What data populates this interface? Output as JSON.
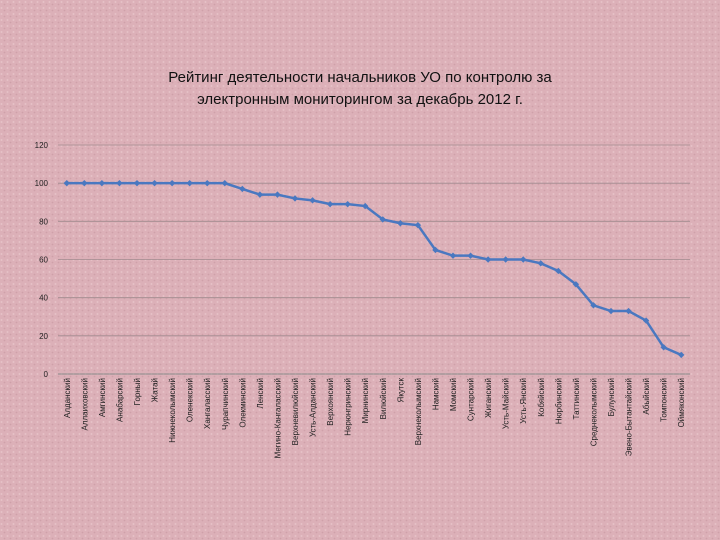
{
  "chart_data": {
    "type": "line",
    "title": "Рейтинг деятельности начальников УО по контролю за электронным мониторингом за декабрь 2012 г.",
    "categories": [
      "Алданский",
      "Аллаиховский",
      "Амгинский",
      "Анабарский",
      "Горный",
      "Жатай",
      "Нижнеколымский",
      "Оленекский",
      "Хангаласский",
      "Чурапчинский",
      "Олекминский",
      "Ленский",
      "Мегино-Кангаласский",
      "Верхневилюйский",
      "Усть-Алданский",
      "Верхоянский",
      "Нерюнгринский",
      "Мирнинский",
      "Вилюйский",
      "Якутск",
      "Верхнеколымский",
      "Намский",
      "Момский",
      "Сунтарский",
      "Жиганский",
      "Усть-Майский",
      "Усть-Янский",
      "Кобяйский",
      "Нюрбинский",
      "Таттинский",
      "Среднеколымский",
      "Булунский",
      "Эвено-Бытантайский",
      "Абыйский",
      "Томпонский",
      "Оймяконский"
    ],
    "values": [
      100,
      100,
      100,
      100,
      100,
      100,
      100,
      100,
      100,
      100,
      97,
      94,
      94,
      92,
      91,
      89,
      89,
      88,
      81,
      79,
      78,
      65,
      62,
      62,
      60,
      60,
      60,
      58,
      54,
      47,
      36,
      33,
      33,
      28,
      14,
      10
    ],
    "color": "#4a78c0",
    "ylim": [
      0,
      120
    ],
    "yticks": [
      0,
      20,
      40,
      60,
      80,
      100,
      120
    ],
    "grid": true
  }
}
